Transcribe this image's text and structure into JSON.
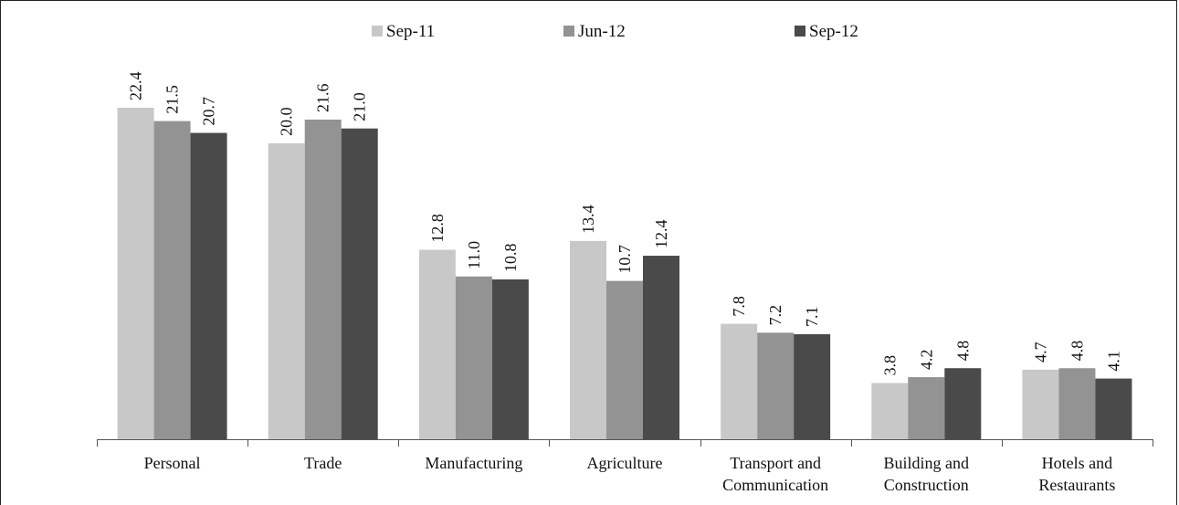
{
  "chart_data": {
    "type": "bar",
    "categories": [
      [
        "Personal"
      ],
      [
        "Trade"
      ],
      [
        "Manufacturing"
      ],
      [
        "Agriculture"
      ],
      [
        "Transport and",
        "Communication"
      ],
      [
        "Building and",
        "Construction"
      ],
      [
        "Hotels and",
        "Restaurants"
      ]
    ],
    "series": [
      {
        "name": "Sep-11",
        "color": "#c8c8c8",
        "values": [
          22.4,
          20.0,
          12.8,
          13.4,
          7.8,
          3.8,
          4.7
        ]
      },
      {
        "name": "Jun-12",
        "color": "#939393",
        "values": [
          21.5,
          21.6,
          11.0,
          10.7,
          7.2,
          4.2,
          4.8
        ]
      },
      {
        "name": "Sep-12",
        "color": "#4a4a4a",
        "values": [
          20.7,
          21.0,
          10.8,
          12.4,
          7.1,
          4.8,
          4.1
        ]
      }
    ],
    "ylim": [
      0,
      22.4
    ],
    "legend_position": "top",
    "grid": false,
    "data_labels": true
  }
}
